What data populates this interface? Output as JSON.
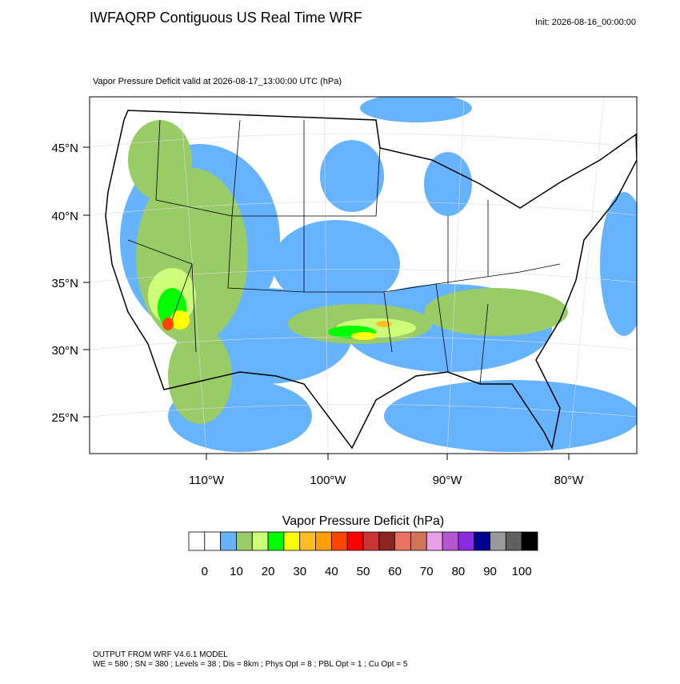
{
  "header": {
    "title": "IWFAQRP Contiguous US Real Time WRF",
    "init": "Init: 2026-08-16_00:00:00"
  },
  "map": {
    "subtitle": "Vapor Pressure Deficit valid at 2026-08-17_13:00:00 UTC   (hPa)",
    "lat_labels": [
      "45°N",
      "40°N",
      "35°N",
      "30°N",
      "25°N"
    ],
    "lon_labels": [
      "110°W",
      "100°W",
      "90°W",
      "80°W"
    ]
  },
  "colorbar": {
    "title": "Vapor Pressure Deficit  (hPa)",
    "colors": [
      "#ffffff",
      "#ffffff",
      "#66b3ff",
      "#99cc66",
      "#ccff77",
      "#00ff00",
      "#ffff00",
      "#ffbf22",
      "#ffa000",
      "#ff4500",
      "#ff0000",
      "#cc3333",
      "#8b2323",
      "#e9735f",
      "#d2735a",
      "#e6a0e6",
      "#b455d2",
      "#8a2be2",
      "#000090",
      "#999999",
      "#606060",
      "#000000"
    ],
    "labels": [
      0,
      10,
      20,
      30,
      40,
      50,
      60,
      70,
      80,
      90,
      100
    ]
  },
  "footer": {
    "lines": [
      "OUTPUT FROM WRF V4.6.1 MODEL",
      "WE = 580 ; SN = 380 ; Levels = 38 ; Dis = 8km ; Phys Opt = 8 ; PBL Opt = 1 ; Cu Opt = 5"
    ]
  }
}
